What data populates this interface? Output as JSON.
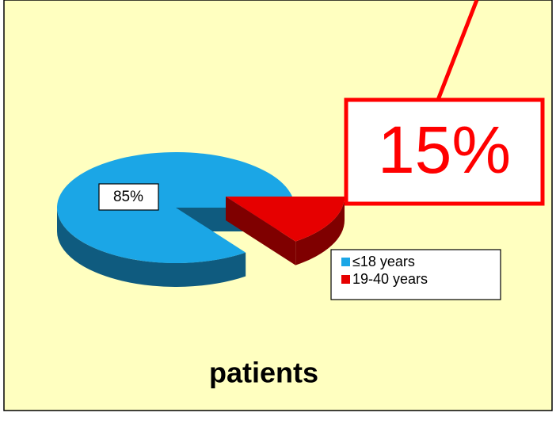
{
  "chart_data": {
    "type": "pie",
    "title": "patients",
    "categories": [
      "≤18 years",
      "19-40 years"
    ],
    "values": [
      85,
      15
    ],
    "value_labels": [
      "85%",
      "15%"
    ],
    "colors": [
      "#1ba6e6",
      "#e60000"
    ]
  }
}
